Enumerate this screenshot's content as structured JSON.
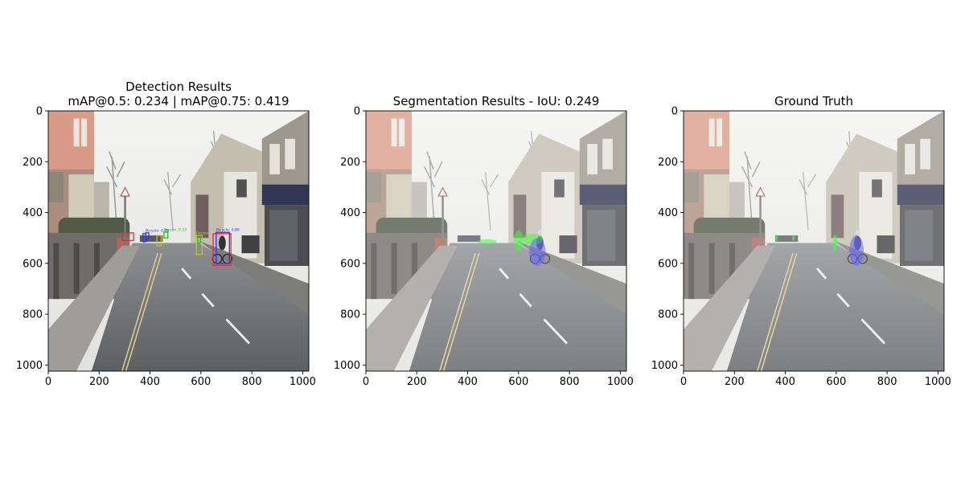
{
  "chart_data": [
    {
      "type": "image",
      "title_lines": [
        "Detection Results",
        "mAP@0.5: 0.234 | mAP@0.75: 0.419"
      ],
      "xlim": [
        0,
        1024
      ],
      "ylim": [
        1024,
        0
      ],
      "xticks": [
        0,
        200,
        400,
        600,
        800,
        1000
      ],
      "yticks": [
        0,
        200,
        400,
        600,
        800,
        1000
      ],
      "boxes": [
        {
          "label": "",
          "color": "#ff2020",
          "x0": 290,
          "y0": 480,
          "x1": 335,
          "y1": 510
        },
        {
          "label": "",
          "color": "#3030ff",
          "x0": 372,
          "y0": 483,
          "x1": 383,
          "y1": 515
        },
        {
          "label": "Bicycle: 0.88",
          "color": "#3030ff",
          "x0": 383,
          "y0": 480,
          "x1": 395,
          "y1": 505
        },
        {
          "label": "Person: 0.53",
          "color": "#20c020",
          "x0": 455,
          "y0": 477,
          "x1": 470,
          "y1": 500
        },
        {
          "label": "",
          "color": "#c8c020",
          "x0": 427,
          "y0": 490,
          "x1": 444,
          "y1": 530
        },
        {
          "label": "Person",
          "color": "#c8c020",
          "x0": 582,
          "y0": 490,
          "x1": 605,
          "y1": 565
        },
        {
          "label": "",
          "color": "#20c020",
          "x0": 588,
          "y0": 497,
          "x1": 598,
          "y1": 520
        },
        {
          "label": "",
          "color": "#ff2020",
          "x0": 648,
          "y0": 483,
          "x1": 718,
          "y1": 607
        },
        {
          "label": "Bicycle: 0.89",
          "color": "#3030ff",
          "x0": 660,
          "y0": 478,
          "x1": 712,
          "y1": 600
        }
      ]
    },
    {
      "type": "image",
      "title_lines": [
        "Segmentation Results - IoU: 0.249"
      ],
      "xlim": [
        0,
        1024
      ],
      "ylim": [
        1024,
        0
      ],
      "xticks": [
        0,
        200,
        400,
        600,
        800,
        1000
      ],
      "yticks": [
        0,
        200,
        400,
        600,
        800,
        1000
      ],
      "masks": [
        {
          "color": "#40ff40",
          "cx": 477,
          "cy": 515,
          "rx": 38,
          "ry": 10
        },
        {
          "color": "#40ff40",
          "cx": 600,
          "cy": 510,
          "rx": 18,
          "ry": 40
        },
        {
          "color": "#40ff40",
          "cx": 655,
          "cy": 505,
          "rx": 40,
          "ry": 22
        },
        {
          "color": "#6060ff",
          "cx": 674,
          "cy": 555,
          "rx": 32,
          "ry": 55
        }
      ]
    },
    {
      "type": "image",
      "title_lines": [
        "Ground Truth"
      ],
      "xlim": [
        0,
        1024
      ],
      "ylim": [
        1024,
        0
      ],
      "xticks": [
        0,
        200,
        400,
        600,
        800,
        1000
      ],
      "yticks": [
        0,
        200,
        400,
        600,
        800,
        1000
      ],
      "masks": [
        {
          "color": "#40ff40",
          "cx": 365,
          "cy": 500,
          "rx": 6,
          "ry": 14
        },
        {
          "color": "#40ff40",
          "cx": 432,
          "cy": 500,
          "rx": 6,
          "ry": 12
        },
        {
          "color": "#40ff40",
          "cx": 595,
          "cy": 520,
          "rx": 10,
          "ry": 32
        },
        {
          "color": "#6060ff",
          "cx": 680,
          "cy": 550,
          "rx": 28,
          "ry": 60
        }
      ]
    }
  ]
}
